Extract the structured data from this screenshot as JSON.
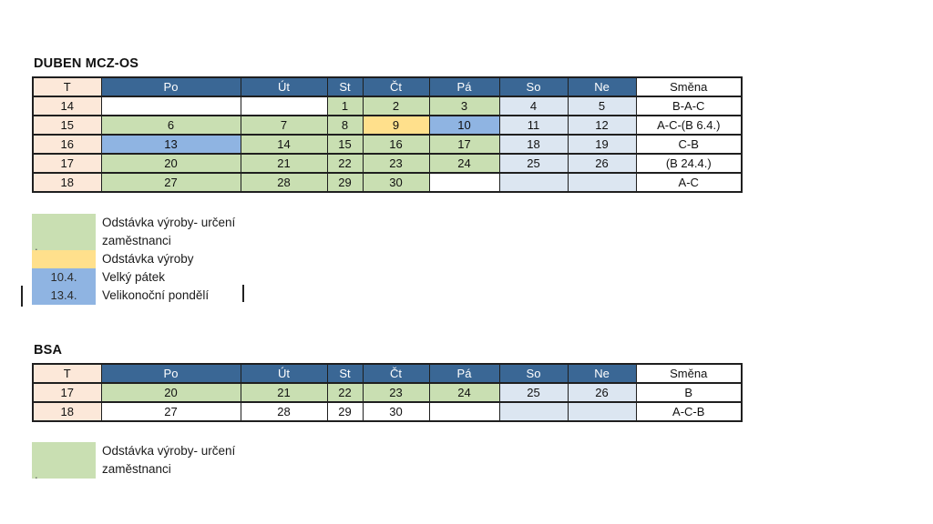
{
  "colors": {
    "header_bg": "#3A6795",
    "header_text": "#FFFFFF",
    "week_col": "#FCE8D9",
    "green": "#C9DFB2",
    "yellow": "#FFE08C",
    "holiday_blue": "#8FB4E2",
    "weekend_blue": "#DCE6F1",
    "white": "#FFFFFF",
    "border": "#1F1F1F"
  },
  "tables": [
    {
      "title": "DUBEN MCZ-OS",
      "headers": [
        "T",
        "Po",
        "Út",
        "St",
        "Čt",
        "Pá",
        "So",
        "Ne",
        "Směna"
      ],
      "rows": [
        {
          "week": "14",
          "days": [
            {
              "t": "",
              "bg": "white"
            },
            {
              "t": "",
              "bg": "white"
            },
            {
              "t": "1",
              "bg": "green"
            },
            {
              "t": "2",
              "bg": "green"
            },
            {
              "t": "3",
              "bg": "green"
            },
            {
              "t": "4",
              "bg": "weekend_blue"
            },
            {
              "t": "5",
              "bg": "weekend_blue"
            }
          ],
          "smena": "B-A-C"
        },
        {
          "week": "15",
          "days": [
            {
              "t": "6",
              "bg": "green"
            },
            {
              "t": "7",
              "bg": "green"
            },
            {
              "t": "8",
              "bg": "green"
            },
            {
              "t": "9",
              "bg": "yellow"
            },
            {
              "t": "10",
              "bg": "holiday_blue"
            },
            {
              "t": "11",
              "bg": "weekend_blue"
            },
            {
              "t": "12",
              "bg": "weekend_blue"
            }
          ],
          "smena": "A-C-(B 6.4.)"
        },
        {
          "week": "16",
          "days": [
            {
              "t": "13",
              "bg": "holiday_blue"
            },
            {
              "t": "14",
              "bg": "green"
            },
            {
              "t": "15",
              "bg": "green"
            },
            {
              "t": "16",
              "bg": "green"
            },
            {
              "t": "17",
              "bg": "green"
            },
            {
              "t": "18",
              "bg": "weekend_blue"
            },
            {
              "t": "19",
              "bg": "weekend_blue"
            }
          ],
          "smena": "C-B"
        },
        {
          "week": "17",
          "days": [
            {
              "t": "20",
              "bg": "green"
            },
            {
              "t": "21",
              "bg": "green"
            },
            {
              "t": "22",
              "bg": "green"
            },
            {
              "t": "23",
              "bg": "green"
            },
            {
              "t": "24",
              "bg": "green"
            },
            {
              "t": "25",
              "bg": "weekend_blue"
            },
            {
              "t": "26",
              "bg": "weekend_blue"
            }
          ],
          "smena": "(B 24.4.)"
        },
        {
          "week": "18",
          "days": [
            {
              "t": "27",
              "bg": "green"
            },
            {
              "t": "28",
              "bg": "green"
            },
            {
              "t": "29",
              "bg": "green"
            },
            {
              "t": "30",
              "bg": "green"
            },
            {
              "t": "",
              "bg": "white"
            },
            {
              "t": "",
              "bg": "weekend_blue"
            },
            {
              "t": "",
              "bg": "weekend_blue"
            }
          ],
          "smena": "A-C"
        }
      ]
    },
    {
      "title": "BSA",
      "headers": [
        "T",
        "Po",
        "Út",
        "St",
        "Čt",
        "Pá",
        "So",
        "Ne",
        "Směna"
      ],
      "rows": [
        {
          "week": "17",
          "days": [
            {
              "t": "20",
              "bg": "green"
            },
            {
              "t": "21",
              "bg": "green"
            },
            {
              "t": "22",
              "bg": "green"
            },
            {
              "t": "23",
              "bg": "green"
            },
            {
              "t": "24",
              "bg": "green"
            },
            {
              "t": "25",
              "bg": "weekend_blue"
            },
            {
              "t": "26",
              "bg": "weekend_blue"
            }
          ],
          "smena": "B"
        },
        {
          "week": "18",
          "days": [
            {
              "t": "27",
              "bg": "white"
            },
            {
              "t": "28",
              "bg": "white"
            },
            {
              "t": "29",
              "bg": "white"
            },
            {
              "t": "30",
              "bg": "white"
            },
            {
              "t": "",
              "bg": "white"
            },
            {
              "t": "",
              "bg": "weekend_blue"
            },
            {
              "t": "",
              "bg": "weekend_blue"
            }
          ],
          "smena": "A-C-B"
        }
      ]
    }
  ],
  "legends": [
    {
      "items": [
        {
          "swatch": "green",
          "swatch_text": "",
          "corner_text": ".",
          "lines": [
            "Odstávka výroby- určení",
            "zaměstnanci"
          ]
        },
        {
          "swatch": "yellow",
          "swatch_text": "",
          "corner_text": "",
          "lines": [
            "Odstávka výroby"
          ]
        },
        {
          "swatch": "holiday_blue",
          "swatch_text": "10.4.",
          "corner_text": "",
          "lines": [
            "Velký pátek"
          ]
        },
        {
          "swatch": "holiday_blue",
          "swatch_text": "13.4.",
          "corner_text": "",
          "lines": [
            "Velikonoční pondělí"
          ]
        }
      ]
    },
    {
      "items": [
        {
          "swatch": "green",
          "swatch_text": "",
          "corner_text": ".",
          "lines": [
            "Odstávka výroby- určení",
            "zaměstnanci"
          ]
        }
      ]
    }
  ]
}
